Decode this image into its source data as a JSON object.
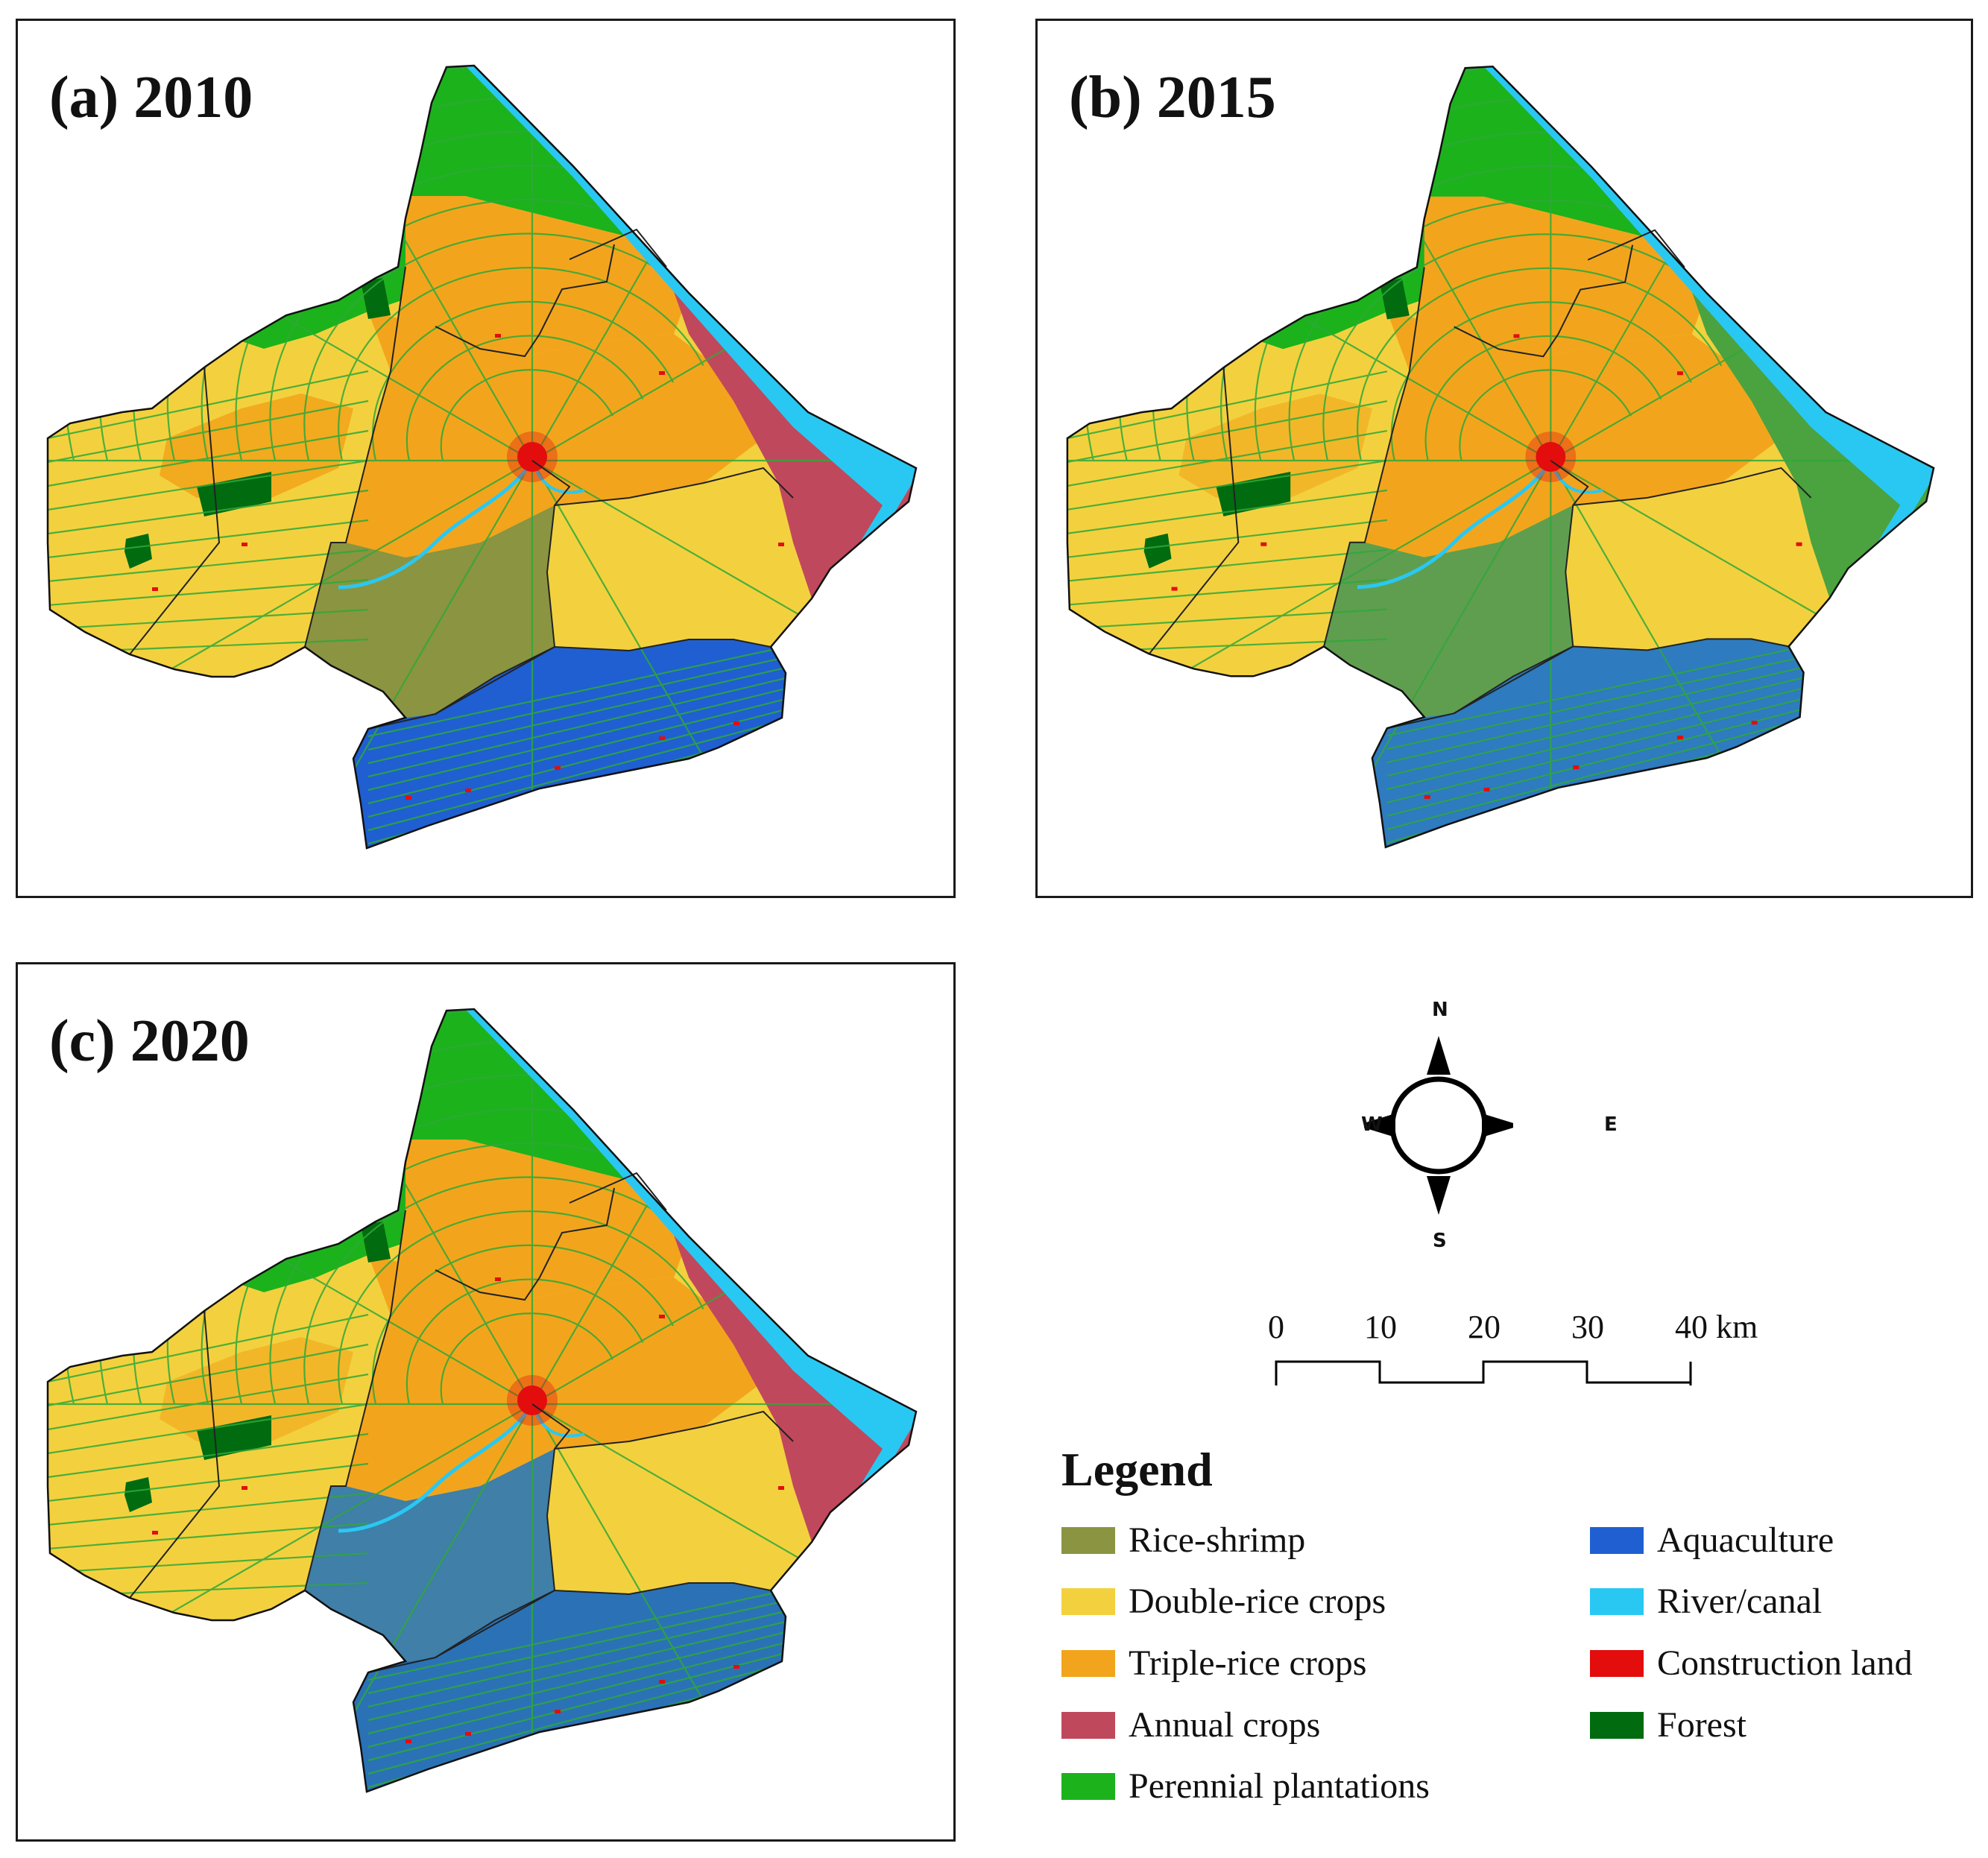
{
  "panels": [
    {
      "id": "a",
      "title": "(a) 2010"
    },
    {
      "id": "b",
      "title": "(b) 2015"
    },
    {
      "id": "c",
      "title": "(c) 2020"
    }
  ],
  "compass": {
    "north": "N",
    "south": "S",
    "east": "E",
    "west": "W"
  },
  "scale_bar": {
    "labels": [
      "0",
      "10",
      "20",
      "30",
      "40 km"
    ]
  },
  "legend": {
    "title": "Legend",
    "items": [
      {
        "label": "Rice-shrimp",
        "color": "#8b9440"
      },
      {
        "label": "Double-rice crops",
        "color": "#f3d13e"
      },
      {
        "label": "Triple-rice crops",
        "color": "#f2a51c"
      },
      {
        "label": "Annual crops",
        "color": "#c0485c"
      },
      {
        "label": "Perennial plantations",
        "color": "#1cb21c"
      },
      {
        "label": "Aquaculture",
        "color": "#1f5fd1"
      },
      {
        "label": "River/canal",
        "color": "#29c8f2"
      },
      {
        "label": "Construction land",
        "color": "#e30d0d"
      },
      {
        "label": "Forest",
        "color": "#006b0f"
      }
    ]
  }
}
